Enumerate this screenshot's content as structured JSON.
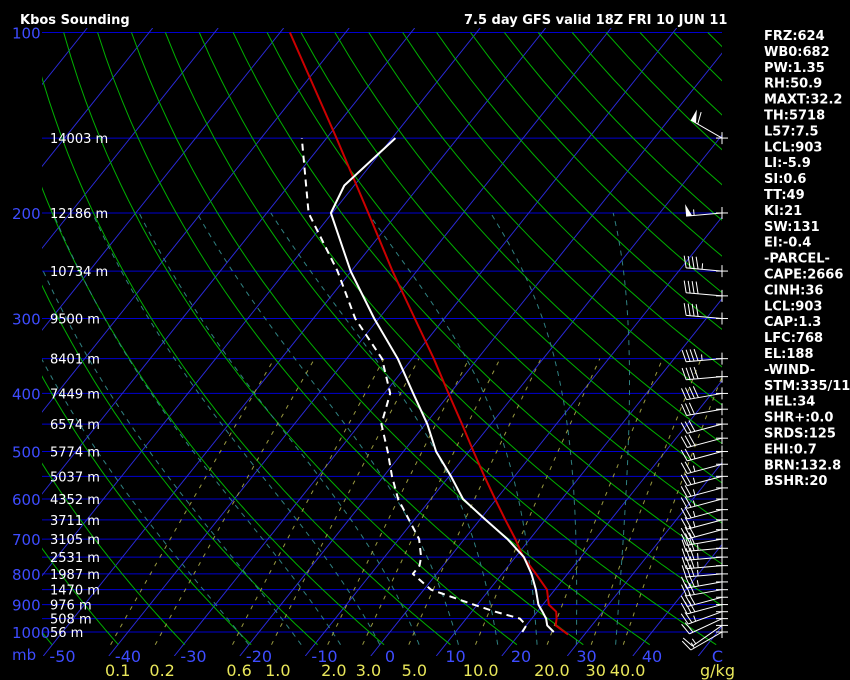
{
  "chart_data": {
    "type": "line",
    "title": "Kbos Sounding",
    "subtitle": "7.5 day GFS valid 18Z FRI 10 JUN 11",
    "pressure_axis": {
      "unit_label": "mb",
      "ticks": [
        100,
        200,
        300,
        400,
        500,
        600,
        700,
        800,
        900,
        1000
      ],
      "ylim": [
        1000,
        100
      ],
      "scale": "log"
    },
    "temperature_axis": {
      "ticks": [
        -50,
        -40,
        -30,
        -20,
        -10,
        0,
        10,
        20,
        30,
        40,
        50
      ],
      "tick_labels": [
        "-50",
        "-40",
        "-30",
        "-20",
        "-10",
        "0",
        "10",
        "20",
        "30",
        "40",
        "C"
      ],
      "skew": true
    },
    "mixing_ratio_axis": {
      "unit_label": "g/kg",
      "ticks": [
        "0.1",
        "0.2",
        "0.6",
        "1.0",
        "2.0",
        "3.0",
        "5.0",
        "10.0",
        "20.0",
        "30",
        "40.0"
      ]
    },
    "heights": [
      {
        "p": 150,
        "label": "14003 m"
      },
      {
        "p": 200,
        "label": "12186 m"
      },
      {
        "p": 250,
        "label": "10734 m"
      },
      {
        "p": 300,
        "label": "9500 m"
      },
      {
        "p": 350,
        "label": "8401 m"
      },
      {
        "p": 400,
        "label": "7449 m"
      },
      {
        "p": 450,
        "label": "6574 m"
      },
      {
        "p": 500,
        "label": "5774 m"
      },
      {
        "p": 550,
        "label": "5037 m"
      },
      {
        "p": 600,
        "label": "4352 m"
      },
      {
        "p": 650,
        "label": "3711 m"
      },
      {
        "p": 700,
        "label": "3105 m"
      },
      {
        "p": 750,
        "label": "2531 m"
      },
      {
        "p": 800,
        "label": "1987 m"
      },
      {
        "p": 850,
        "label": "1470 m"
      },
      {
        "p": 900,
        "label": "976 m"
      },
      {
        "p": 950,
        "label": "508 m"
      },
      {
        "p": 1000,
        "label": "56 m"
      }
    ],
    "series": [
      {
        "color": "#cc0000",
        "style": "solid",
        "points": [
          {
            "p": 1010,
            "t": 27.5
          },
          {
            "p": 975,
            "t": 24.5
          },
          {
            "p": 950,
            "t": 23.8
          },
          {
            "p": 925,
            "t": 22.9
          },
          {
            "p": 900,
            "t": 20.9
          },
          {
            "p": 850,
            "t": 18.8
          },
          {
            "p": 800,
            "t": 15.2
          },
          {
            "p": 750,
            "t": 11.2
          },
          {
            "p": 700,
            "t": 7.8
          },
          {
            "p": 650,
            "t": 3.9
          },
          {
            "p": 600,
            "t": -0.2
          },
          {
            "p": 550,
            "t": -4.6
          },
          {
            "p": 500,
            "t": -9.3
          },
          {
            "p": 450,
            "t": -14.4
          },
          {
            "p": 400,
            "t": -20.2
          },
          {
            "p": 350,
            "t": -26.7
          },
          {
            "p": 300,
            "t": -34.5
          },
          {
            "p": 250,
            "t": -43.7
          },
          {
            "p": 200,
            "t": -54.5
          },
          {
            "p": 150,
            "t": -68.5
          },
          {
            "p": 100,
            "t": -88.5
          }
        ]
      },
      {
        "color": "#ffffff",
        "style": "solid",
        "points": [
          {
            "p": 1000,
            "t": 25.0
          },
          {
            "p": 975,
            "t": 23.2
          },
          {
            "p": 950,
            "t": 22.2
          },
          {
            "p": 925,
            "t": 20.8
          },
          {
            "p": 900,
            "t": 19.3
          },
          {
            "p": 850,
            "t": 17.1
          },
          {
            "p": 800,
            "t": 14.5
          },
          {
            "p": 750,
            "t": 11.3
          },
          {
            "p": 700,
            "t": 6.6
          },
          {
            "p": 650,
            "t": 0.9
          },
          {
            "p": 600,
            "t": -5.1
          },
          {
            "p": 550,
            "t": -9.7
          },
          {
            "p": 500,
            "t": -15.0
          },
          {
            "p": 450,
            "t": -19.7
          },
          {
            "p": 400,
            "t": -25.6
          },
          {
            "p": 350,
            "t": -32.2
          },
          {
            "p": 300,
            "t": -40.7
          },
          {
            "p": 250,
            "t": -50.1
          },
          {
            "p": 200,
            "t": -60.2
          },
          {
            "p": 180,
            "t": -61.5
          },
          {
            "p": 150,
            "t": -59.5
          }
        ]
      },
      {
        "color": "#ffffff",
        "style": "dashed",
        "points": [
          {
            "p": 1000,
            "t": 20.2
          },
          {
            "p": 975,
            "t": 20.0
          },
          {
            "p": 950,
            "t": 18.2
          },
          {
            "p": 925,
            "t": 13.6
          },
          {
            "p": 900,
            "t": 9.4
          },
          {
            "p": 850,
            "t": 1.1
          },
          {
            "p": 800,
            "t": -3.6
          },
          {
            "p": 775,
            "t": -3.6
          },
          {
            "p": 750,
            "t": -4.4
          },
          {
            "p": 700,
            "t": -6.9
          },
          {
            "p": 650,
            "t": -10.8
          },
          {
            "p": 600,
            "t": -15.0
          },
          {
            "p": 550,
            "t": -18.7
          },
          {
            "p": 500,
            "t": -22.4
          },
          {
            "p": 450,
            "t": -26.7
          },
          {
            "p": 400,
            "t": -29.1
          },
          {
            "p": 350,
            "t": -34.6
          },
          {
            "p": 300,
            "t": -43.6
          },
          {
            "p": 250,
            "t": -52.1
          },
          {
            "p": 200,
            "t": -63.6
          },
          {
            "p": 150,
            "t": -73.8
          }
        ]
      }
    ],
    "wind_barbs": [
      {
        "p": 1000,
        "dir": 240,
        "spd": 15
      },
      {
        "p": 975,
        "dir": 235,
        "spd": 15
      },
      {
        "p": 950,
        "dir": 245,
        "spd": 20
      },
      {
        "p": 925,
        "dir": 250,
        "spd": 25
      },
      {
        "p": 900,
        "dir": 255,
        "spd": 30
      },
      {
        "p": 875,
        "dir": 255,
        "spd": 30
      },
      {
        "p": 850,
        "dir": 260,
        "spd": 30
      },
      {
        "p": 825,
        "dir": 260,
        "spd": 35
      },
      {
        "p": 800,
        "dir": 265,
        "spd": 35
      },
      {
        "p": 775,
        "dir": 265,
        "spd": 35
      },
      {
        "p": 750,
        "dir": 265,
        "spd": 35
      },
      {
        "p": 725,
        "dir": 265,
        "spd": 35
      },
      {
        "p": 700,
        "dir": 260,
        "spd": 30
      },
      {
        "p": 675,
        "dir": 255,
        "spd": 30
      },
      {
        "p": 650,
        "dir": 255,
        "spd": 25
      },
      {
        "p": 625,
        "dir": 255,
        "spd": 25
      },
      {
        "p": 600,
        "dir": 255,
        "spd": 25
      },
      {
        "p": 575,
        "dir": 255,
        "spd": 25
      },
      {
        "p": 550,
        "dir": 255,
        "spd": 25
      },
      {
        "p": 525,
        "dir": 255,
        "spd": 25
      },
      {
        "p": 500,
        "dir": 255,
        "spd": 25
      },
      {
        "p": 475,
        "dir": 255,
        "spd": 30
      },
      {
        "p": 450,
        "dir": 255,
        "spd": 30
      },
      {
        "p": 425,
        "dir": 260,
        "spd": 30
      },
      {
        "p": 400,
        "dir": 260,
        "spd": 40
      },
      {
        "p": 375,
        "dir": 265,
        "spd": 40
      },
      {
        "p": 350,
        "dir": 265,
        "spd": 45
      },
      {
        "p": 300,
        "dir": 275,
        "spd": 40
      },
      {
        "p": 275,
        "dir": 275,
        "spd": 40
      },
      {
        "p": 250,
        "dir": 275,
        "spd": 45
      },
      {
        "p": 200,
        "dir": 265,
        "spd": 55
      },
      {
        "p": 150,
        "dir": 300,
        "spd": 60
      }
    ],
    "indices": [
      "FRZ:624",
      "WB0:682",
      "PW:1.35",
      "RH:50.9",
      "MAXT:32.2",
      "TH:5718",
      "L57:7.5",
      "LCL:903",
      "LI:-5.9",
      "SI:0.6",
      "TT:49",
      "KI:21",
      "SW:131",
      "EI:-0.4",
      "-PARCEL-",
      "CAPE:2666",
      "CINH:36",
      "LCL:903",
      "CAP:1.3",
      "LFC:768",
      "EL:188",
      "-WIND-",
      "STM:335/11",
      "HEL:34",
      "SHR+:0.0",
      "SRDS:125",
      "EHI:0.7",
      "BRN:132.8",
      "BSHR:20"
    ],
    "grid": true,
    "colors": {
      "isobar": "#0000d0",
      "isotherm": "#2a2ad8",
      "dry_adiabat": "#00b000",
      "moist_adiabat": "#2f8080",
      "mixing_ratio": "#9a9a40",
      "parcel": "#cc0000",
      "temperature": "#ffffff",
      "dewpoint": "#ffffff"
    }
  }
}
